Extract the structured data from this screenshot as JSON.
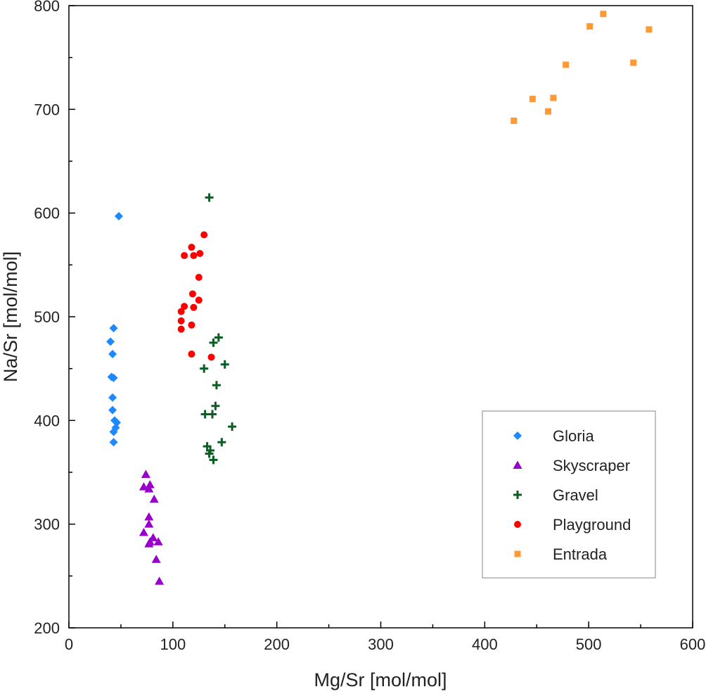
{
  "chart_data": {
    "type": "scatter",
    "xlabel": "Mg/Sr [mol/mol]",
    "ylabel": "Na/Sr [mol/mol]",
    "xlim": [
      0,
      600
    ],
    "ylim": [
      200,
      800
    ],
    "xticks": [
      0,
      100,
      200,
      300,
      400,
      500,
      600
    ],
    "yticks": [
      200,
      300,
      400,
      500,
      600,
      700,
      800
    ],
    "grid": false,
    "legend": "bottom-right",
    "series": [
      {
        "name": "Gloria",
        "marker": "diamond",
        "color": "#1E88FF",
        "x": [
          48,
          43,
          40,
          42,
          41,
          43,
          42,
          42,
          44,
          46,
          45,
          43,
          43
        ],
        "y": [
          597,
          489,
          476,
          464,
          442,
          441,
          422,
          410,
          400,
          398,
          393,
          389,
          379
        ]
      },
      {
        "name": "Skyscraper",
        "marker": "triangle",
        "color": "#9A00CC",
        "x": [
          74,
          72,
          78,
          77,
          82,
          77,
          77,
          72,
          81,
          78,
          77,
          86,
          84,
          87
        ],
        "y": [
          348,
          336,
          338,
          334,
          324,
          307,
          300,
          292,
          287,
          283,
          281,
          283,
          266,
          245
        ]
      },
      {
        "name": "Gravel",
        "marker": "plus",
        "color": "#0B5E22",
        "x": [
          135,
          144,
          139,
          130,
          150,
          142,
          141,
          131,
          138,
          157,
          147,
          133,
          136,
          135,
          139
        ],
        "y": [
          615,
          480,
          475,
          450,
          454,
          434,
          414,
          406,
          406,
          394,
          379,
          375,
          371,
          368,
          362
        ]
      },
      {
        "name": "Playground",
        "marker": "circle",
        "color": "#FF0000",
        "x": [
          130,
          118,
          111,
          120,
          126,
          125,
          119,
          125,
          111,
          120,
          108,
          108,
          118,
          108,
          118,
          137
        ],
        "y": [
          579,
          567,
          559,
          559,
          561,
          538,
          522,
          516,
          510,
          509,
          505,
          496,
          492,
          488,
          464,
          461
        ]
      },
      {
        "name": "Entrada",
        "marker": "square",
        "color": "#FF9933",
        "x": [
          428,
          446,
          461,
          466,
          478,
          501,
          514,
          543,
          558
        ],
        "y": [
          689,
          710,
          698,
          711,
          743,
          780,
          792,
          745,
          777
        ]
      }
    ]
  }
}
